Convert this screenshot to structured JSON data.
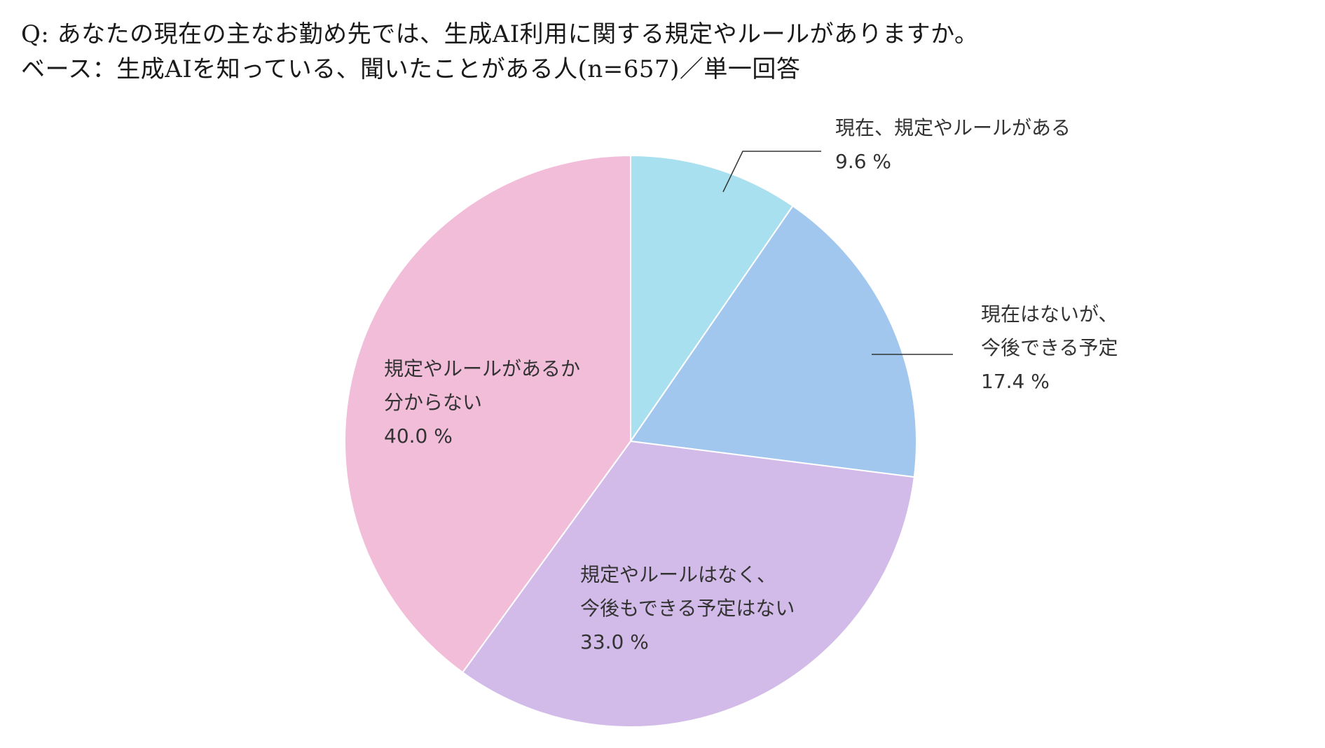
{
  "question": "Q:  あなたの現在の主なお勤め先では、生成AI利用に関する規定やルールがありますか。",
  "base": "ベース：生成AIを知っている、聞いたことがある人(n=657)／単一回答",
  "chart_data": {
    "type": "pie",
    "unit": "%",
    "slices": [
      {
        "label_lines": [
          "現在、規定やルールがある"
        ],
        "value": 9.6,
        "value_label": "9.6 %",
        "color": "#a8e0ef"
      },
      {
        "label_lines": [
          "現在はないが、",
          "今後できる予定"
        ],
        "value": 17.4,
        "value_label": "17.4 %",
        "color": "#a2c7ee"
      },
      {
        "label_lines": [
          "規定やルールはなく、",
          "今後もできる予定はない"
        ],
        "value": 33.0,
        "value_label": "33.0 %",
        "color": "#d2bbe8"
      },
      {
        "label_lines": [
          "規定やルールがあるか",
          "分からない"
        ],
        "value": 40.0,
        "value_label": "40.0 %",
        "color": "#f2bdd9"
      }
    ],
    "start_angle": "12 o'clock",
    "direction": "clockwise",
    "legend": "none"
  }
}
